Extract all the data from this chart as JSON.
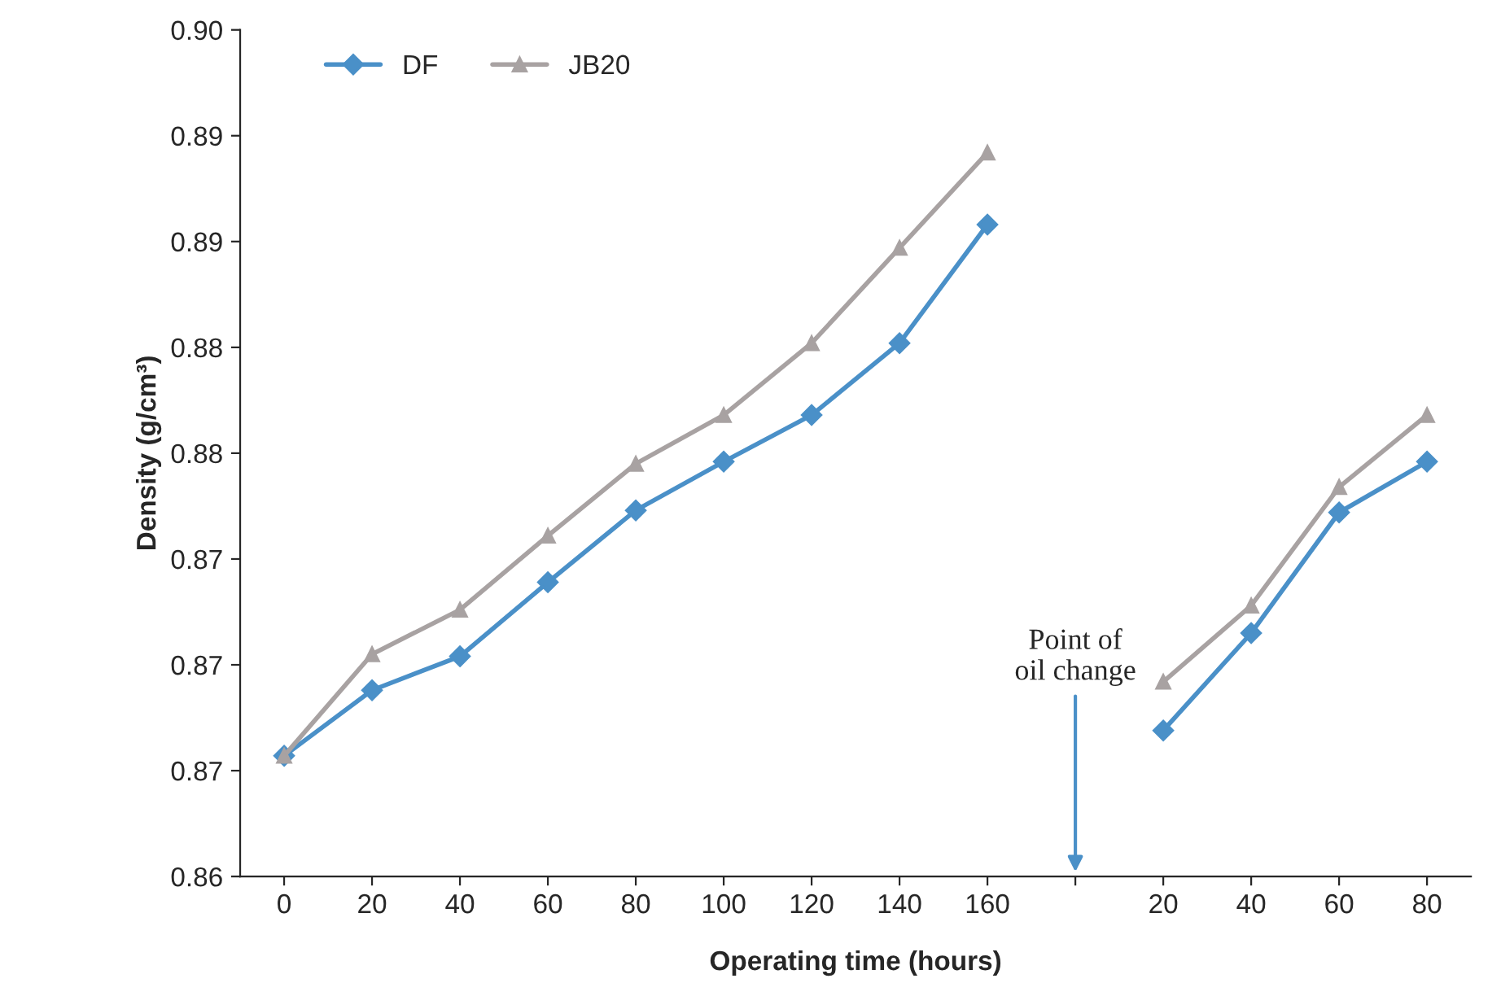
{
  "chart_data": {
    "type": "line",
    "xlabel": "Operating time (hours)",
    "ylabel": "Density (g/cm³)",
    "categories": [
      "0",
      "20",
      "40",
      "60",
      "80",
      "100",
      "120",
      "140",
      "160",
      null,
      "20",
      "40",
      "60",
      "80"
    ],
    "series": [
      {
        "name": "DF",
        "color": "#4a90c8",
        "marker": "diamond",
        "values": [
          0.8657,
          0.8688,
          0.8704,
          0.8739,
          0.8773,
          0.8796,
          0.8818,
          0.8852,
          0.8908,
          null,
          0.8669,
          0.8715,
          0.8772,
          0.8796
        ]
      },
      {
        "name": "JB20",
        "color": "#a8a2a2",
        "marker": "triangle",
        "values": [
          0.8657,
          0.8705,
          0.8726,
          0.8761,
          0.8795,
          0.8818,
          0.8852,
          0.8897,
          0.8942,
          null,
          0.8692,
          0.8728,
          0.8784,
          0.8818
        ]
      }
    ],
    "ylim": [
      0.86,
      0.9
    ],
    "yticks": [
      {
        "value": 0.86,
        "label": "0.86"
      },
      {
        "value": 0.865,
        "label": "0.87"
      },
      {
        "value": 0.87,
        "label": "0.87"
      },
      {
        "value": 0.875,
        "label": "0.87"
      },
      {
        "value": 0.88,
        "label": "0.88"
      },
      {
        "value": 0.885,
        "label": "0.88"
      },
      {
        "value": 0.89,
        "label": "0.89"
      },
      {
        "value": 0.895,
        "label": "0.89"
      },
      {
        "value": 0.9,
        "label": "0.90"
      }
    ],
    "annotations": [
      "Point of\noil change"
    ],
    "legend": "top left",
    "grid": false,
    "line_style": "solid"
  }
}
